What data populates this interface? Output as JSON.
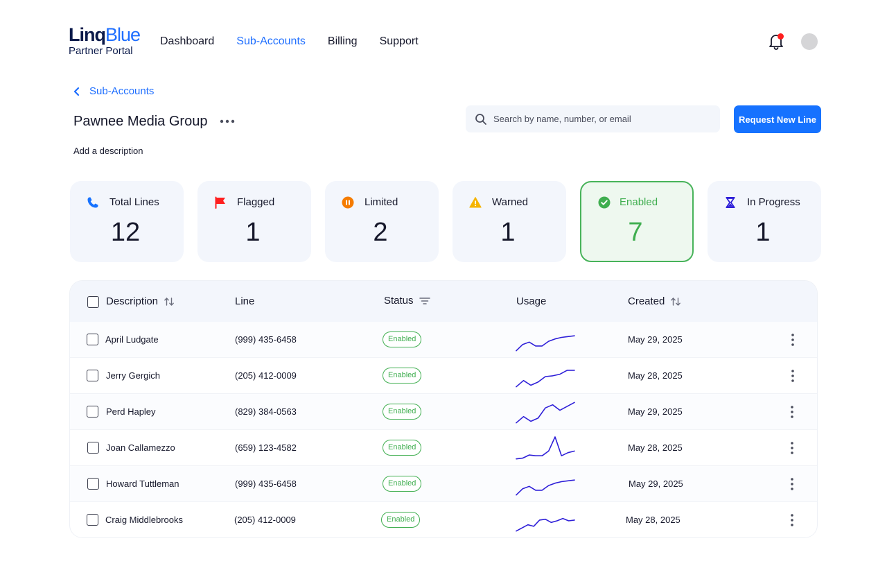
{
  "brand": {
    "logo_main_1": "Linq",
    "logo_main_2": "Blue",
    "logo_sub": "Partner Portal"
  },
  "nav": [
    {
      "label": "Dashboard",
      "active": false
    },
    {
      "label": "Sub-Accounts",
      "active": true
    },
    {
      "label": "Billing",
      "active": false
    },
    {
      "label": "Support",
      "active": false
    }
  ],
  "header": {
    "bell_icon": "bell-icon",
    "has_notification": true
  },
  "breadcrumb": {
    "back_label": "Sub-Accounts"
  },
  "account": {
    "name": "Pawnee Media Group",
    "add_description": "Add a description"
  },
  "search": {
    "placeholder": "Search by name, number, or email",
    "value": ""
  },
  "actions": {
    "request_line": "Request New Line"
  },
  "stats": [
    {
      "label": "Total Lines",
      "value": "12",
      "icon": "phone-icon",
      "color": "#1672ff",
      "selected": false
    },
    {
      "label": "Flagged",
      "value": "1",
      "icon": "flag-icon",
      "color": "#ff1f1f",
      "selected": false
    },
    {
      "label": "Limited",
      "value": "2",
      "icon": "pause-icon",
      "color": "#f57c00",
      "selected": false
    },
    {
      "label": "Warned",
      "value": "1",
      "icon": "warning-icon",
      "color": "#f5b400",
      "selected": false
    },
    {
      "label": "Enabled",
      "value": "7",
      "icon": "check-circle-icon",
      "color": "#3fae4f",
      "selected": true
    },
    {
      "label": "In Progress",
      "value": "1",
      "icon": "hourglass-icon",
      "color": "#2e1fd8",
      "selected": false
    }
  ],
  "table": {
    "columns": {
      "description": "Description",
      "line": "Line",
      "status": "Status",
      "usage": "Usage",
      "created": "Created"
    },
    "rows": [
      {
        "description": "April Ludgate",
        "line": "(999) 435-6458",
        "status": "Enabled",
        "created": "May 29, 2025",
        "usage": [
          2,
          10,
          13,
          8,
          8,
          14,
          17,
          19,
          20,
          21
        ]
      },
      {
        "description": "Jerry Gergich",
        "line": "(205) 412-0009",
        "status": "Enabled",
        "created": "May 28, 2025",
        "usage": [
          2,
          10,
          4,
          8,
          15,
          16,
          18,
          23,
          23
        ]
      },
      {
        "description": "Perd Hapley",
        "line": "(829) 384-0563",
        "status": "Enabled",
        "created": "May 29, 2025",
        "usage": [
          2,
          10,
          4,
          8,
          21,
          25,
          18,
          23,
          28
        ]
      },
      {
        "description": "Joan Callamezzo",
        "line": "(659) 123-4582",
        "status": "Enabled",
        "created": "May 28, 2025",
        "usage": [
          2,
          3,
          7,
          6,
          6,
          12,
          30,
          6,
          10,
          12
        ]
      },
      {
        "description": "Howard Tuttleman",
        "line": "(999) 435-6458",
        "status": "Enabled",
        "created": "May 29, 2025",
        "usage": [
          2,
          10,
          13,
          8,
          8,
          14,
          17,
          19,
          20,
          21
        ]
      },
      {
        "description": "Craig Middlebrooks",
        "line": "(205) 412-0009",
        "status": "Enabled",
        "created": "May 28, 2025",
        "usage": [
          2,
          6,
          10,
          8,
          16,
          17,
          13,
          15,
          18,
          15,
          16
        ]
      }
    ]
  }
}
